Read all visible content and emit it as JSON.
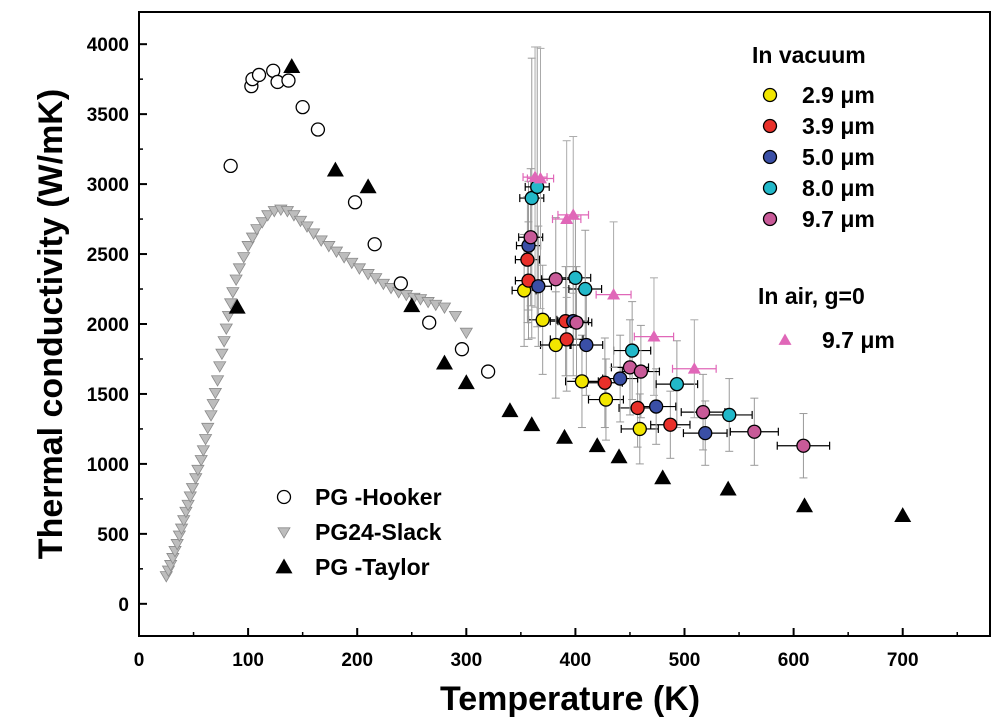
{
  "chart_data": {
    "type": "scatter",
    "xlabel": "Temperature (K)",
    "ylabel": "Thermal conductivity (W/mK)",
    "xlim": [
      0,
      780
    ],
    "ylim": [
      -230,
      4230
    ],
    "xticks": [
      0,
      100,
      200,
      300,
      400,
      500,
      600,
      700
    ],
    "yticks": [
      0,
      500,
      1000,
      1500,
      2000,
      2500,
      3000,
      3500,
      4000
    ],
    "grid": false,
    "legend_left": {
      "placement": "bottom-left",
      "entries": [
        "PG -Hooker",
        "PG24-Slack",
        "PG -Taylor"
      ]
    },
    "legend_right": {
      "placement": "top-right",
      "vacuum_title": "In vacuum",
      "air_title": "In air, g=0"
    },
    "series": [
      {
        "name": "PG -Hooker",
        "marker": "circle-open",
        "color": "#000000",
        "points": [
          [
            84,
            3130
          ],
          [
            103,
            3700
          ],
          [
            104,
            3750
          ],
          [
            110,
            3780
          ],
          [
            123,
            3810
          ],
          [
            127,
            3730
          ],
          [
            137,
            3740
          ],
          [
            150,
            3550
          ],
          [
            164,
            3390
          ],
          [
            198,
            2870
          ],
          [
            216,
            2570
          ],
          [
            240,
            2290
          ],
          [
            266,
            2010
          ],
          [
            296,
            1820
          ],
          [
            320,
            1660
          ]
        ]
      },
      {
        "name": "PG24-Slack",
        "marker": "triangle-down",
        "color": "#bdbdbd",
        "points": [
          [
            25,
            200
          ],
          [
            27,
            240
          ],
          [
            29,
            280
          ],
          [
            31,
            330
          ],
          [
            33,
            380
          ],
          [
            35,
            430
          ],
          [
            37,
            490
          ],
          [
            39,
            540
          ],
          [
            41,
            600
          ],
          [
            43,
            660
          ],
          [
            45,
            710
          ],
          [
            47,
            770
          ],
          [
            49,
            830
          ],
          [
            52,
            900
          ],
          [
            54,
            960
          ],
          [
            57,
            1030
          ],
          [
            59,
            1100
          ],
          [
            61,
            1180
          ],
          [
            63,
            1260
          ],
          [
            66,
            1350
          ],
          [
            68,
            1430
          ],
          [
            70,
            1510
          ],
          [
            72,
            1600
          ],
          [
            74,
            1700
          ],
          [
            76,
            1790
          ],
          [
            78,
            1880
          ],
          [
            80,
            1970
          ],
          [
            82,
            2060
          ],
          [
            84,
            2150
          ],
          [
            86,
            2230
          ],
          [
            89,
            2320
          ],
          [
            92,
            2400
          ],
          [
            96,
            2480
          ],
          [
            100,
            2560
          ],
          [
            104,
            2620
          ],
          [
            108,
            2680
          ],
          [
            113,
            2730
          ],
          [
            118,
            2780
          ],
          [
            124,
            2810
          ],
          [
            130,
            2820
          ],
          [
            136,
            2810
          ],
          [
            142,
            2780
          ],
          [
            148,
            2740
          ],
          [
            154,
            2700
          ],
          [
            160,
            2650
          ],
          [
            167,
            2600
          ],
          [
            174,
            2560
          ],
          [
            181,
            2520
          ],
          [
            188,
            2480
          ],
          [
            195,
            2440
          ],
          [
            202,
            2400
          ],
          [
            210,
            2360
          ],
          [
            217,
            2330
          ],
          [
            224,
            2290
          ],
          [
            231,
            2260
          ],
          [
            238,
            2230
          ],
          [
            245,
            2210
          ],
          [
            252,
            2190
          ],
          [
            258,
            2180
          ],
          [
            265,
            2160
          ],
          [
            272,
            2140
          ],
          [
            280,
            2120
          ],
          [
            290,
            2060
          ],
          [
            300,
            1940
          ]
        ]
      },
      {
        "name": "PG -Taylor",
        "marker": "triangle-up",
        "color": "#000000",
        "points": [
          [
            90,
            2120
          ],
          [
            140,
            3840
          ],
          [
            180,
            3100
          ],
          [
            210,
            2980
          ],
          [
            250,
            2130
          ],
          [
            280,
            1720
          ],
          [
            300,
            1580
          ],
          [
            340,
            1380
          ],
          [
            360,
            1280
          ],
          [
            390,
            1190
          ],
          [
            420,
            1130
          ],
          [
            440,
            1050
          ],
          [
            480,
            900
          ],
          [
            540,
            820
          ],
          [
            610,
            700
          ],
          [
            700,
            630
          ]
        ]
      },
      {
        "name": "2.9 μm",
        "group": "In vacuum",
        "marker": "circle-filled",
        "color": "#f2e600",
        "points": [
          [
            353,
            2240,
            11,
            400
          ],
          [
            370,
            2030,
            13,
            390
          ],
          [
            382,
            1850,
            14,
            380
          ],
          [
            406,
            1590,
            15,
            330
          ],
          [
            428,
            1460,
            16,
            290
          ],
          [
            459,
            1250,
            17,
            250
          ]
        ]
      },
      {
        "name": "3.9 μm",
        "group": "In vacuum",
        "marker": "circle-filled",
        "color": "#e8302a",
        "points": [
          [
            356,
            2460,
            11,
            450
          ],
          [
            357,
            2310,
            12,
            420
          ],
          [
            391,
            2020,
            14,
            390
          ],
          [
            392,
            1890,
            15,
            370
          ],
          [
            427,
            1580,
            16,
            320
          ],
          [
            457,
            1400,
            17,
            280
          ],
          [
            487,
            1280,
            18,
            240
          ]
        ]
      },
      {
        "name": "5.0 μm",
        "group": "In vacuum",
        "marker": "circle-filled",
        "color": "#3a4fa6",
        "points": [
          [
            357,
            2560,
            11,
            460
          ],
          [
            366,
            2270,
            12,
            430
          ],
          [
            398,
            2020,
            14,
            390
          ],
          [
            410,
            1850,
            15,
            360
          ],
          [
            441,
            1610,
            16,
            310
          ],
          [
            474,
            1410,
            18,
            270
          ],
          [
            519,
            1220,
            20,
            230
          ]
        ]
      },
      {
        "name": "8.0 μm",
        "group": "In vacuum",
        "marker": "circle-filled",
        "color": "#22b8c9",
        "points": [
          [
            360,
            2900,
            11,
            1000
          ],
          [
            365,
            2980,
            11,
            1000
          ],
          [
            400,
            2330,
            14,
            440
          ],
          [
            409,
            2250,
            15,
            420
          ],
          [
            452,
            1810,
            17,
            350
          ],
          [
            493,
            1570,
            19,
            310
          ],
          [
            541,
            1350,
            21,
            260
          ]
        ]
      },
      {
        "name": "9.7 μm",
        "group": "In vacuum",
        "marker": "circle-filled",
        "color": "#c85a98",
        "points": [
          [
            359,
            2620,
            11,
            490
          ],
          [
            382,
            2320,
            13,
            440
          ],
          [
            401,
            2010,
            14,
            400
          ],
          [
            450,
            1690,
            17,
            340
          ],
          [
            460,
            1660,
            17,
            330
          ],
          [
            517,
            1370,
            20,
            270
          ],
          [
            564,
            1230,
            22,
            240
          ],
          [
            609,
            1130,
            24,
            230
          ]
        ]
      },
      {
        "name": "9.7 μm",
        "group": "In air, g=0",
        "marker": "triangle-up-filled",
        "color": "#e067b8",
        "points": [
          [
            363,
            3050,
            11,
            930
          ],
          [
            368,
            3040,
            12,
            930
          ],
          [
            392,
            2750,
            13,
            560
          ],
          [
            398,
            2780,
            14,
            560
          ],
          [
            435,
            2210,
            16,
            520
          ],
          [
            472,
            1910,
            18,
            420
          ],
          [
            509,
            1680,
            20,
            350
          ]
        ]
      }
    ]
  }
}
